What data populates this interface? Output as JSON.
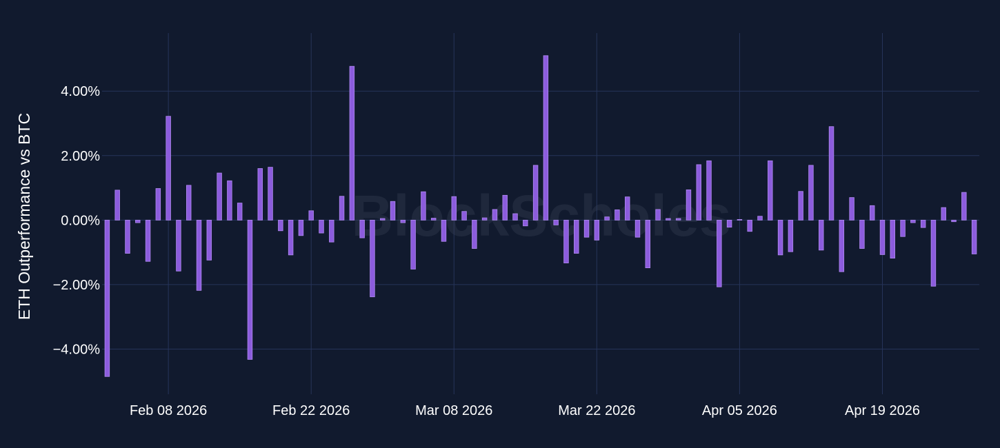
{
  "watermark": "BlockScholes",
  "colors": {
    "background": "#111a2e",
    "grid": "#26345a",
    "bar": "#8c5cdd",
    "bar_outline": "#b08af0",
    "text": "#ffffff"
  },
  "chart_data": {
    "type": "bar",
    "ylabel": "ETH Outperformance vs BTC",
    "xlabel": "",
    "y_tick_labels": [
      "−4.00%",
      "−2.00%",
      "0.00%",
      "2.00%",
      "4.00%"
    ],
    "y_tick_values": [
      -4,
      -2,
      0,
      2,
      4
    ],
    "ylim": [
      -5.4,
      5.8
    ],
    "x_tick_labels": [
      "Feb 08 2026",
      "Feb 22 2026",
      "Mar 08 2026",
      "Mar 22 2026",
      "Apr 05 2026",
      "Apr 19 2026"
    ],
    "x_tick_dates": [
      "2026-02-08",
      "2026-02-22",
      "2026-03-08",
      "2026-03-22",
      "2026-04-05",
      "2026-04-19"
    ],
    "x_range": [
      "2026-02-01 12:00",
      "2026-04-28 12:00"
    ],
    "grid": true,
    "categories": [
      "2026-02-02",
      "2026-02-03",
      "2026-02-04",
      "2026-02-05",
      "2026-02-06",
      "2026-02-07",
      "2026-02-08",
      "2026-02-09",
      "2026-02-10",
      "2026-02-11",
      "2026-02-12",
      "2026-02-13",
      "2026-02-14",
      "2026-02-15",
      "2026-02-16",
      "2026-02-17",
      "2026-02-18",
      "2026-02-19",
      "2026-02-20",
      "2026-02-21",
      "2026-02-22",
      "2026-02-23",
      "2026-02-24",
      "2026-02-25",
      "2026-02-26",
      "2026-02-27",
      "2026-02-28",
      "2026-03-01",
      "2026-03-02",
      "2026-03-03",
      "2026-03-04",
      "2026-03-05",
      "2026-03-06",
      "2026-03-07",
      "2026-03-08",
      "2026-03-09",
      "2026-03-10",
      "2026-03-11",
      "2026-03-12",
      "2026-03-13",
      "2026-03-14",
      "2026-03-15",
      "2026-03-16",
      "2026-03-17",
      "2026-03-18",
      "2026-03-19",
      "2026-03-20",
      "2026-03-21",
      "2026-03-22",
      "2026-03-23",
      "2026-03-24",
      "2026-03-25",
      "2026-03-26",
      "2026-03-27",
      "2026-03-28",
      "2026-03-29",
      "2026-03-30",
      "2026-03-31",
      "2026-04-01",
      "2026-04-02",
      "2026-04-03",
      "2026-04-04",
      "2026-04-05",
      "2026-04-06",
      "2026-04-07",
      "2026-04-08",
      "2026-04-09",
      "2026-04-10",
      "2026-04-11",
      "2026-04-12",
      "2026-04-13",
      "2026-04-14",
      "2026-04-15",
      "2026-04-16",
      "2026-04-17",
      "2026-04-18",
      "2026-04-19",
      "2026-04-20",
      "2026-04-21",
      "2026-04-22",
      "2026-04-23",
      "2026-04-24",
      "2026-04-25",
      "2026-04-26",
      "2026-04-27",
      "2026-04-28"
    ],
    "values": [
      -4.85,
      0.93,
      -1.03,
      -0.08,
      -1.28,
      0.98,
      3.22,
      -1.58,
      1.08,
      -2.18,
      -1.24,
      1.46,
      1.22,
      0.53,
      -4.32,
      1.6,
      1.64,
      -0.33,
      -1.08,
      -0.48,
      0.29,
      -0.4,
      -0.68,
      0.74,
      4.77,
      -0.55,
      -2.38,
      0.05,
      0.58,
      -0.08,
      -1.52,
      0.88,
      0.06,
      -0.66,
      0.73,
      0.27,
      -0.88,
      0.07,
      0.33,
      0.77,
      0.2,
      -0.18,
      1.7,
      5.1,
      -0.15,
      -1.33,
      -1.03,
      -0.53,
      -0.62,
      0.1,
      0.32,
      0.72,
      -0.53,
      -1.48,
      0.33,
      0.05,
      0.05,
      0.94,
      1.72,
      1.84,
      -2.07,
      -0.22,
      0.02,
      -0.35,
      0.12,
      1.84,
      -1.08,
      -0.98,
      0.89,
      1.7,
      -0.93,
      2.9,
      -1.6,
      0.7,
      -0.88,
      0.45,
      -1.07,
      -1.18,
      -0.51,
      -0.08,
      -0.23,
      -2.05,
      0.39,
      -0.05,
      0.86,
      -1.05
    ]
  }
}
